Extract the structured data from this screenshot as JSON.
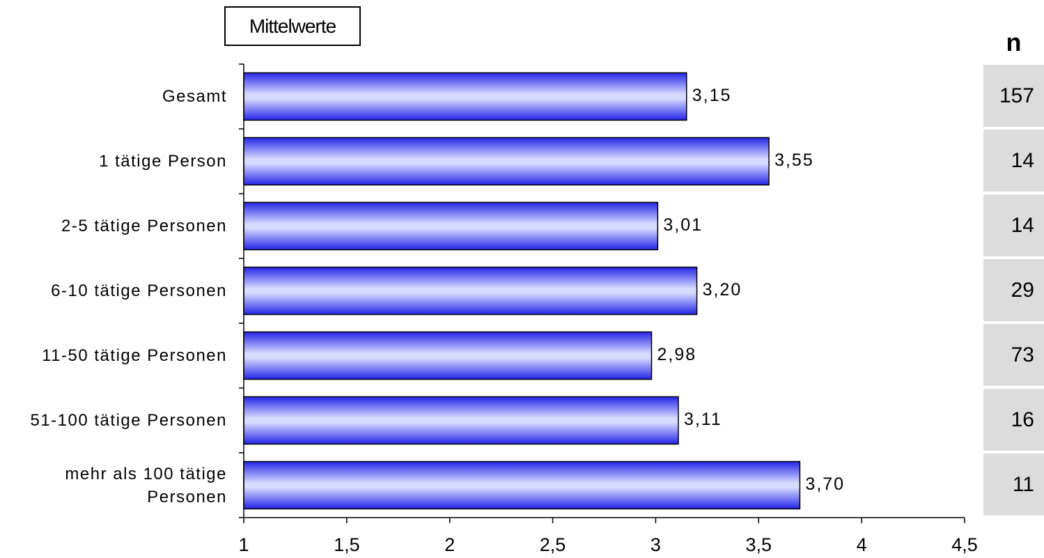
{
  "legend": {
    "label": "Mittelwerte"
  },
  "n_column": {
    "header": "n",
    "values": [
      "157",
      "14",
      "14",
      "29",
      "73",
      "16",
      "11"
    ]
  },
  "colors": {
    "bar_dark": "#2424e8",
    "bar_light": "#d6daff",
    "n_bg": "#dcdcdc"
  },
  "chart_data": {
    "type": "bar",
    "orientation": "horizontal",
    "categories": [
      "Gesamt",
      "1 tätige Person",
      "2-5 tätige Personen",
      "6-10 tätige Personen",
      "11-50 tätige Personen",
      "51-100 tätige Personen",
      "mehr als 100 tätige Personen"
    ],
    "category_lines": [
      [
        "Gesamt"
      ],
      [
        "1 tätige Person"
      ],
      [
        "2-5 tätige Personen"
      ],
      [
        "6-10 tätige Personen"
      ],
      [
        "11-50 tätige Personen"
      ],
      [
        "51-100 tätige Personen"
      ],
      [
        "mehr als 100 tätige",
        "Personen"
      ]
    ],
    "values": [
      3.15,
      3.55,
      3.01,
      3.2,
      2.98,
      3.11,
      3.7
    ],
    "value_labels": [
      "3,15",
      "3,55",
      "3,01",
      "3,20",
      "2,98",
      "3,11",
      "3,70"
    ],
    "xlim": [
      1,
      4.5
    ],
    "xticks": [
      1,
      1.5,
      2,
      2.5,
      3,
      3.5,
      4,
      4.5
    ],
    "xtick_labels": [
      "1",
      "1,5",
      "2",
      "2,5",
      "3",
      "3,5",
      "4",
      "4,5"
    ],
    "grid": false,
    "legend_position": "top-left"
  }
}
